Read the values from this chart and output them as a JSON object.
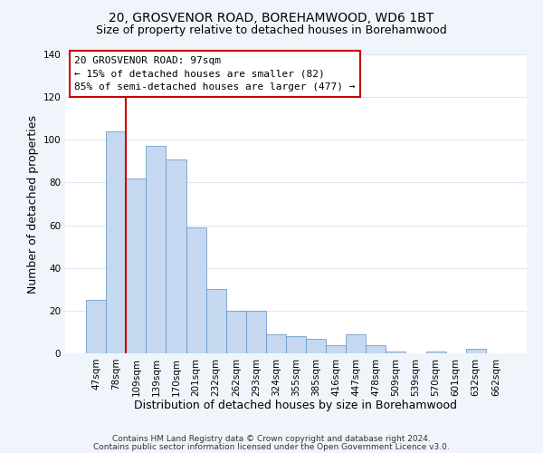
{
  "title": "20, GROSVENOR ROAD, BOREHAMWOOD, WD6 1BT",
  "subtitle": "Size of property relative to detached houses in Borehamwood",
  "xlabel": "Distribution of detached houses by size in Borehamwood",
  "ylabel": "Number of detached properties",
  "bar_labels": [
    "47sqm",
    "78sqm",
    "109sqm",
    "139sqm",
    "170sqm",
    "201sqm",
    "232sqm",
    "262sqm",
    "293sqm",
    "324sqm",
    "355sqm",
    "385sqm",
    "416sqm",
    "447sqm",
    "478sqm",
    "509sqm",
    "539sqm",
    "570sqm",
    "601sqm",
    "632sqm",
    "662sqm"
  ],
  "bar_heights": [
    25,
    104,
    82,
    97,
    91,
    59,
    30,
    20,
    20,
    9,
    8,
    7,
    4,
    9,
    4,
    1,
    0,
    1,
    0,
    2,
    0
  ],
  "bar_color": "#c5d8f0",
  "bar_edge_color": "#5a8fc2",
  "vline_color": "#cc0000",
  "ylim": [
    0,
    140
  ],
  "yticks": [
    0,
    20,
    40,
    60,
    80,
    100,
    120,
    140
  ],
  "annotation_title": "20 GROSVENOR ROAD: 97sqm",
  "annotation_line1": "← 15% of detached houses are smaller (82)",
  "annotation_line2": "85% of semi-detached houses are larger (477) →",
  "annotation_box_color": "#ffffff",
  "annotation_box_edge": "#cc0000",
  "footer1": "Contains HM Land Registry data © Crown copyright and database right 2024.",
  "footer2": "Contains public sector information licensed under the Open Government Licence v3.0.",
  "plot_bg_color": "#ffffff",
  "fig_bg_color": "#f0f5fb",
  "grid_color": "#dce8f5",
  "title_fontsize": 10,
  "subtitle_fontsize": 9,
  "axis_label_fontsize": 9,
  "tick_fontsize": 7.5,
  "annotation_fontsize": 8,
  "footer_fontsize": 6.5
}
